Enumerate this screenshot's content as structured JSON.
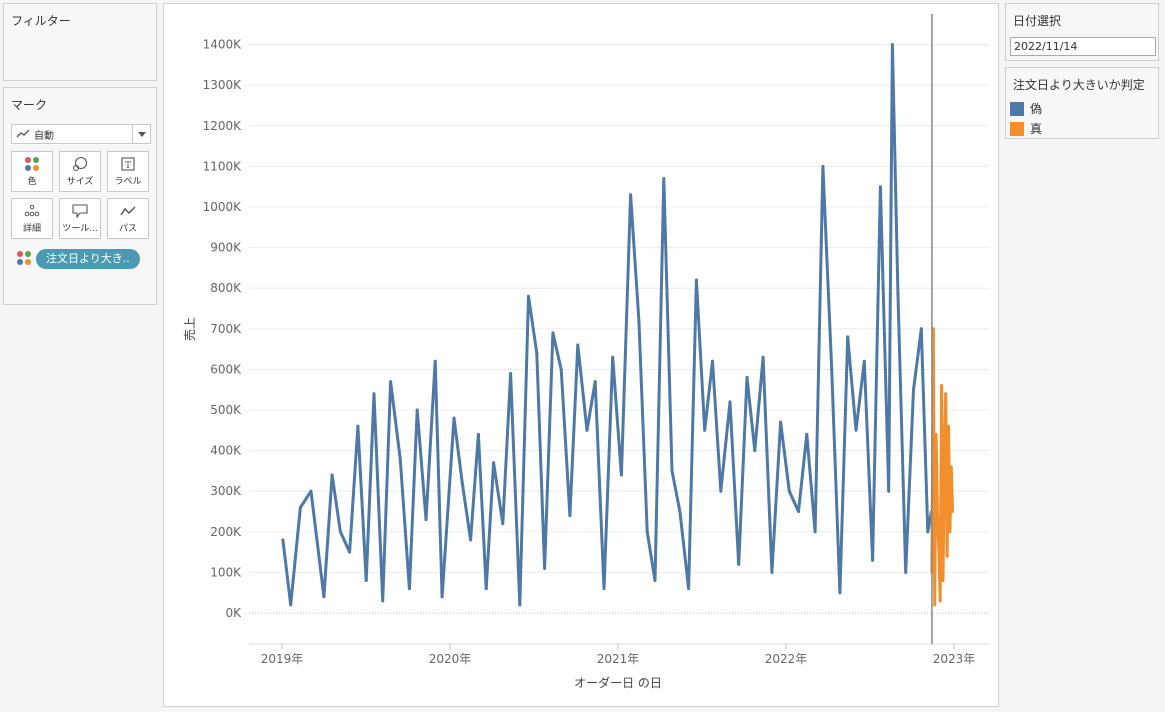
{
  "filters": {
    "title": "フィルター"
  },
  "marks": {
    "title": "マーク",
    "mark_type": "自動",
    "mark_type_icon": "line-icon",
    "buttons": [
      {
        "label": "色",
        "icon": "color-icon"
      },
      {
        "label": "サイズ",
        "icon": "size-icon"
      },
      {
        "label": "ラベル",
        "icon": "label-icon"
      },
      {
        "label": "詳細",
        "icon": "detail-icon"
      },
      {
        "label": "ツール...",
        "icon": "tooltip-icon"
      },
      {
        "label": "パス",
        "icon": "path-icon"
      }
    ],
    "pill": {
      "label": "注文日より大き..",
      "icon": "color-icon"
    }
  },
  "date_select": {
    "title": "日付選択",
    "value": "2022/11/14"
  },
  "legend": {
    "title": "注文日より大きいか判定",
    "items": [
      {
        "label": "偽",
        "color": "#4e79a7"
      },
      {
        "label": "真",
        "color": "#f28e2b"
      }
    ]
  },
  "chart_data": {
    "type": "line",
    "ylabel": "売上",
    "xlabel": "オーダー日 の日",
    "yticks": [
      "0K",
      "100K",
      "200K",
      "300K",
      "400K",
      "500K",
      "600K",
      "700K",
      "800K",
      "900K",
      "1000K",
      "1100K",
      "1200K",
      "1300K",
      "1400K"
    ],
    "ylim": [
      0,
      1400000
    ],
    "xticks": [
      "2019年",
      "2020年",
      "2021年",
      "2022年",
      "2023年"
    ],
    "xlim": [
      "2019-01-01",
      "2023-01-01"
    ],
    "reference_line": "2022-11-14",
    "grid": true,
    "legend_position": "right",
    "series": [
      {
        "name": "偽",
        "color": "#4e79a7",
        "x": [
          "2019-01-03",
          "2019-01-20",
          "2019-02-10",
          "2019-03-05",
          "2019-04-02",
          "2019-04-20",
          "2019-05-08",
          "2019-05-28",
          "2019-06-15",
          "2019-07-03",
          "2019-07-20",
          "2019-08-08",
          "2019-08-25",
          "2019-09-15",
          "2019-10-05",
          "2019-10-22",
          "2019-11-10",
          "2019-11-30",
          "2019-12-15",
          "2020-01-10",
          "2020-01-28",
          "2020-02-15",
          "2020-03-03",
          "2020-03-20",
          "2020-04-05",
          "2020-04-25",
          "2020-05-12",
          "2020-06-01",
          "2020-06-20",
          "2020-07-08",
          "2020-07-25",
          "2020-08-12",
          "2020-08-30",
          "2020-09-18",
          "2020-10-05",
          "2020-10-25",
          "2020-11-12",
          "2020-12-01",
          "2020-12-20",
          "2021-01-08",
          "2021-01-28",
          "2021-02-15",
          "2021-03-05",
          "2021-03-22",
          "2021-04-10",
          "2021-04-28",
          "2021-05-15",
          "2021-06-03",
          "2021-06-20",
          "2021-07-08",
          "2021-07-25",
          "2021-08-12",
          "2021-09-01",
          "2021-09-20",
          "2021-10-08",
          "2021-10-25",
          "2021-11-12",
          "2021-12-01",
          "2021-12-20",
          "2022-01-08",
          "2022-01-28",
          "2022-02-15",
          "2022-03-05",
          "2022-03-22",
          "2022-04-10",
          "2022-04-28",
          "2022-05-15",
          "2022-06-02",
          "2022-06-20",
          "2022-07-08",
          "2022-07-25",
          "2022-08-12",
          "2022-08-20",
          "2022-09-01",
          "2022-09-18",
          "2022-10-05",
          "2022-10-22",
          "2022-11-05",
          "2022-11-13"
        ],
        "values": [
          180000,
          20000,
          260000,
          300000,
          40000,
          340000,
          200000,
          150000,
          460000,
          80000,
          540000,
          30000,
          570000,
          380000,
          60000,
          500000,
          230000,
          620000,
          40000,
          480000,
          320000,
          180000,
          440000,
          60000,
          370000,
          220000,
          590000,
          20000,
          780000,
          640000,
          110000,
          690000,
          600000,
          240000,
          660000,
          450000,
          570000,
          60000,
          630000,
          340000,
          1030000,
          720000,
          200000,
          80000,
          1070000,
          350000,
          250000,
          60000,
          820000,
          450000,
          620000,
          300000,
          520000,
          120000,
          580000,
          400000,
          630000,
          100000,
          470000,
          300000,
          250000,
          440000,
          200000,
          1100000,
          600000,
          50000,
          680000,
          450000,
          620000,
          130000,
          1050000,
          300000,
          1400000,
          790000,
          100000,
          550000,
          700000,
          200000,
          250000
        ]
      },
      {
        "name": "真",
        "color": "#f28e2b",
        "x": [
          "2022-11-14",
          "2022-11-17",
          "2022-11-20",
          "2022-11-23",
          "2022-11-26",
          "2022-11-29",
          "2022-12-02",
          "2022-12-05",
          "2022-12-08",
          "2022-12-11",
          "2022-12-14",
          "2022-12-17",
          "2022-12-20",
          "2022-12-23",
          "2022-12-26",
          "2022-12-29"
        ],
        "values": [
          100000,
          700000,
          20000,
          440000,
          250000,
          160000,
          30000,
          560000,
          80000,
          380000,
          540000,
          140000,
          460000,
          200000,
          360000,
          250000
        ]
      }
    ]
  }
}
